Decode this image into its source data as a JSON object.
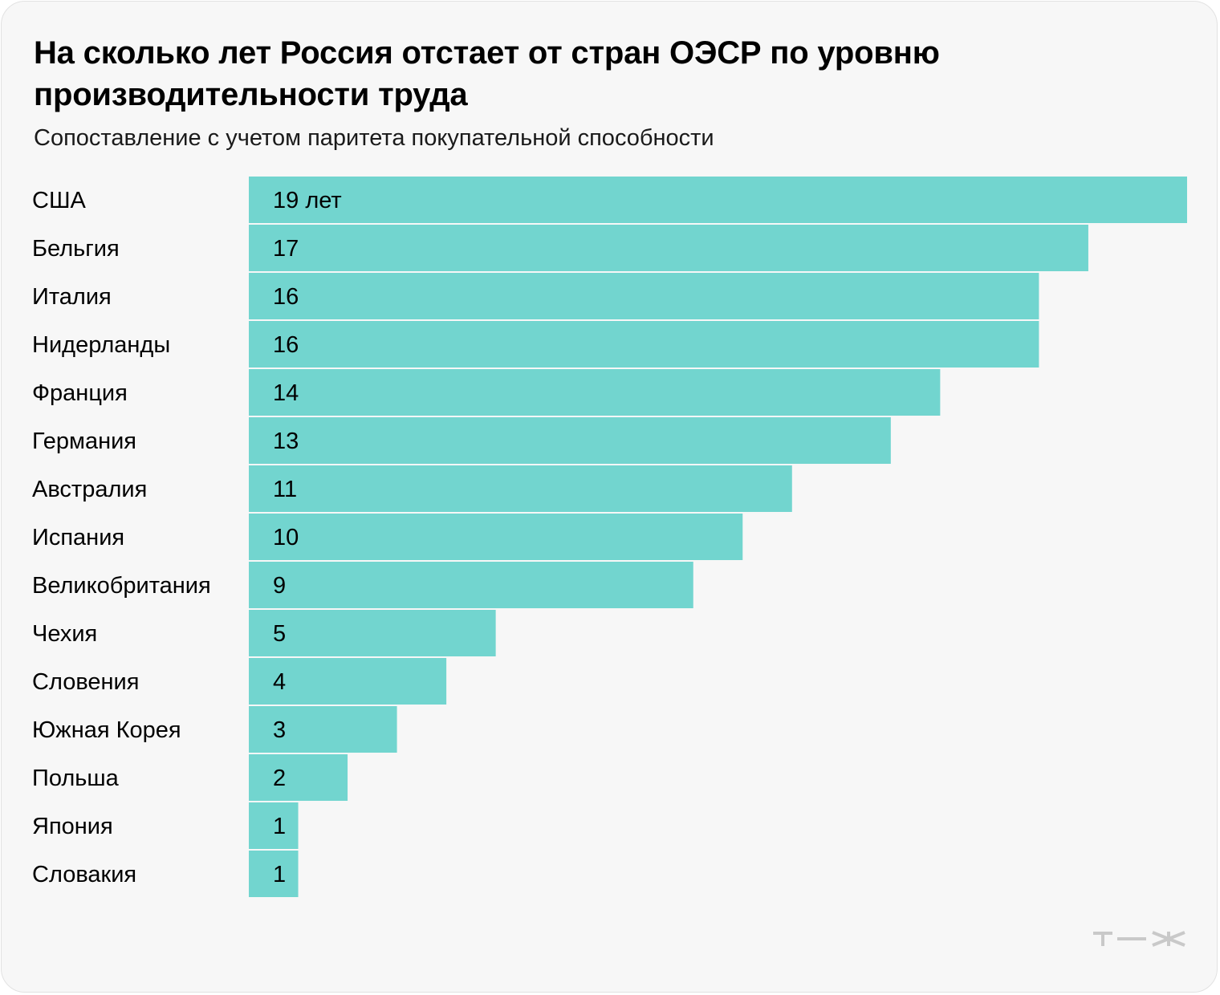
{
  "title": "На сколько лет Россия отстает от стран ОЭСР по уровню производительности труда",
  "subtitle": "Сопоставление с учетом паритета покупательной способности",
  "logo_text": "т—ж",
  "colors": {
    "bar": "#72d5cf",
    "background": "#f7f7f7"
  },
  "chart_data": {
    "type": "bar",
    "orientation": "horizontal",
    "title": "На сколько лет Россия отстает от стран ОЭСР по уровню производительности труда",
    "subtitle": "Сопоставление с учетом паритета покупательной способности",
    "categories": [
      "США",
      "Бельгия",
      "Италия",
      "Нидерланды",
      "Франция",
      "Германия",
      "Австралия",
      "Испания",
      "Великобритания",
      "Чехия",
      "Словения",
      "Южная Корея",
      "Польша",
      "Япония",
      "Словакия"
    ],
    "values": [
      19,
      17,
      16,
      16,
      14,
      13,
      11,
      10,
      9,
      5,
      4,
      3,
      2,
      1,
      1
    ],
    "value_labels": [
      "19 лет",
      "17",
      "16",
      "16",
      "14",
      "13",
      "11",
      "10",
      "9",
      "5",
      "4",
      "3",
      "2",
      "1",
      "1"
    ],
    "xlim": [
      0,
      19
    ],
    "grid": false,
    "legend": "none"
  }
}
